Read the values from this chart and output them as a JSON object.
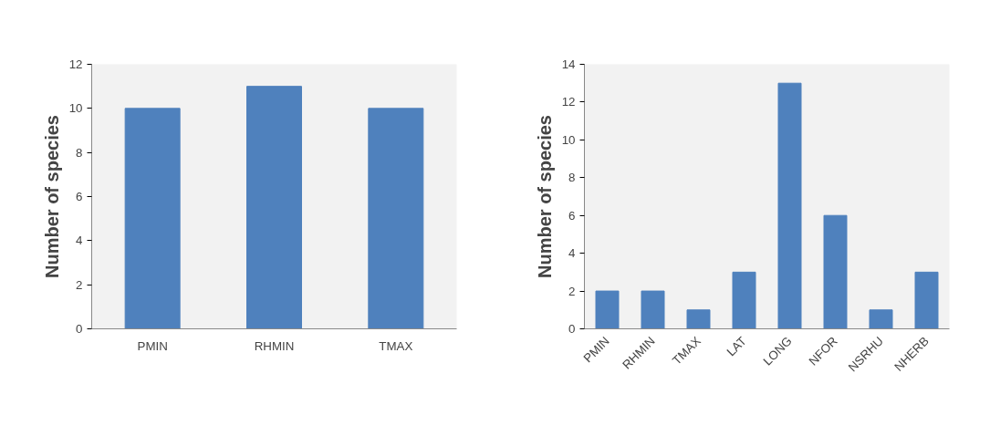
{
  "chart_data": [
    {
      "type": "bar",
      "ylabel": "Number of species",
      "categories": [
        "PMIN",
        "RHMIN",
        "TMAX"
      ],
      "values": [
        10,
        11,
        10
      ],
      "color": "#4f81bd",
      "ylim": [
        0,
        12
      ],
      "yticks": [
        0,
        2,
        4,
        6,
        8,
        10,
        12
      ],
      "grid": false
    },
    {
      "type": "bar",
      "ylabel": "Number of species",
      "categories": [
        "PMIN",
        "RHMIN",
        "TMAX",
        "LAT",
        "LONG",
        "NFOR",
        "NSRHU",
        "NHERB"
      ],
      "values": [
        2,
        2,
        1,
        3,
        13,
        6,
        1,
        3
      ],
      "color": "#4f81bd",
      "ylim": [
        0,
        14
      ],
      "yticks": [
        0,
        2,
        4,
        6,
        8,
        10,
        12,
        14
      ],
      "grid": false
    }
  ]
}
